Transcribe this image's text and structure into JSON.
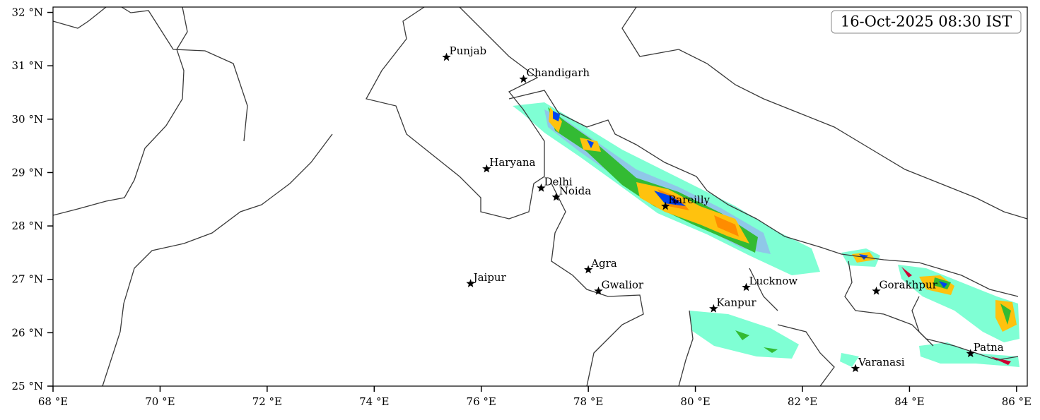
{
  "map": {
    "timestamp": "16-Oct-2025 08:30 IST",
    "xlim": [
      68,
      86.2
    ],
    "ylim": [
      25,
      32.1
    ],
    "xticks": [
      {
        "value": 68,
        "label": "68 °E"
      },
      {
        "value": 70,
        "label": "70 °E"
      },
      {
        "value": 72,
        "label": "72 °E"
      },
      {
        "value": 74,
        "label": "74 °E"
      },
      {
        "value": 76,
        "label": "76 °E"
      },
      {
        "value": 78,
        "label": "78 °E"
      },
      {
        "value": 80,
        "label": "80 °E"
      },
      {
        "value": 82,
        "label": "82 °E"
      },
      {
        "value": 84,
        "label": "84 °E"
      },
      {
        "value": 86,
        "label": "86 °E"
      }
    ],
    "yticks": [
      {
        "value": 25,
        "label": "25 °N"
      },
      {
        "value": 26,
        "label": "26 °N"
      },
      {
        "value": 27,
        "label": "27 °N"
      },
      {
        "value": 28,
        "label": "28 °N"
      },
      {
        "value": 29,
        "label": "29 °N"
      },
      {
        "value": 30,
        "label": "30 °N"
      },
      {
        "value": 31,
        "label": "31 °N"
      },
      {
        "value": 32,
        "label": "32 °N"
      }
    ],
    "cities": [
      {
        "name": "Punjab",
        "lon": 75.35,
        "lat": 31.16
      },
      {
        "name": "Chandigarh",
        "lon": 76.79,
        "lat": 30.75
      },
      {
        "name": "Haryana",
        "lon": 76.1,
        "lat": 29.07
      },
      {
        "name": "Delhi",
        "lon": 77.12,
        "lat": 28.71
      },
      {
        "name": "Noida",
        "lon": 77.4,
        "lat": 28.54
      },
      {
        "name": "Bareilly",
        "lon": 79.44,
        "lat": 28.37
      },
      {
        "name": "Agra",
        "lon": 78.0,
        "lat": 27.18
      },
      {
        "name": "Jaipur",
        "lon": 75.8,
        "lat": 26.92
      },
      {
        "name": "Gwalior",
        "lon": 78.19,
        "lat": 26.78
      },
      {
        "name": "Lucknow",
        "lon": 80.95,
        "lat": 26.85
      },
      {
        "name": "Kanpur",
        "lon": 80.34,
        "lat": 26.45
      },
      {
        "name": "Gorakhpur",
        "lon": 83.38,
        "lat": 26.78
      },
      {
        "name": "Varanasi",
        "lon": 82.99,
        "lat": 25.33
      },
      {
        "name": "Patna",
        "lon": 85.14,
        "lat": 25.61
      }
    ]
  }
}
